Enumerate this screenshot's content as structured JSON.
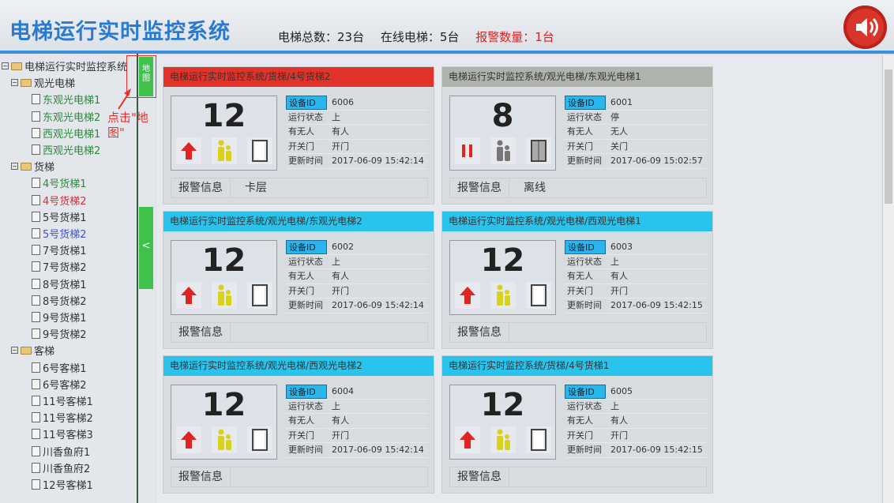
{
  "header": {
    "title": "电梯运行实时监控系统",
    "total": "电梯总数：23台",
    "online": "在线电梯：5台",
    "alarm": "报警数量：1台",
    "speaker_icon": "speaker-icon"
  },
  "sidebar": {
    "root": "电梯运行实时监控系统",
    "groups": [
      {
        "label": "观光电梯",
        "items": [
          {
            "label": "东观光电梯1",
            "color": "#2a8a3a"
          },
          {
            "label": "东观光电梯2",
            "color": "#2a8a3a"
          },
          {
            "label": "西观光电梯1",
            "color": "#2a8a3a"
          },
          {
            "label": "西观光电梯2",
            "color": "#2a8a3a"
          }
        ]
      },
      {
        "label": "货梯",
        "items": [
          {
            "label": "4号货梯1",
            "color": "#2a8a3a"
          },
          {
            "label": "4号货梯2",
            "color": "#d0303a"
          },
          {
            "label": "5号货梯1",
            "color": "#333333"
          },
          {
            "label": "5号货梯2",
            "color": "#4050d0"
          },
          {
            "label": "7号货梯1",
            "color": "#333333"
          },
          {
            "label": "7号货梯2",
            "color": "#333333"
          },
          {
            "label": "8号货梯1",
            "color": "#333333"
          },
          {
            "label": "8号货梯2",
            "color": "#333333"
          },
          {
            "label": "9号货梯1",
            "color": "#333333"
          },
          {
            "label": "9号货梯2",
            "color": "#333333"
          }
        ]
      },
      {
        "label": "客梯",
        "items": [
          {
            "label": "6号客梯1",
            "color": "#333333"
          },
          {
            "label": "6号客梯2",
            "color": "#333333"
          },
          {
            "label": "11号客梯1",
            "color": "#333333"
          },
          {
            "label": "11号客梯2",
            "color": "#333333"
          },
          {
            "label": "11号客梯3",
            "color": "#333333"
          },
          {
            "label": "川香鱼府1",
            "color": "#333333"
          },
          {
            "label": "川香鱼府2",
            "color": "#333333"
          },
          {
            "label": "12号客梯1",
            "color": "#333333"
          }
        ]
      }
    ],
    "map_button": "地图",
    "collapse_button": "<",
    "annotation": "点击\"地图\""
  },
  "labels": {
    "id": "设备ID",
    "state": "运行状态",
    "people": "有无人",
    "door": "开关门",
    "time": "更新时间",
    "alarm": "报警信息"
  },
  "cards": [
    {
      "title": "电梯运行实时监控系统/货梯/4号货梯2",
      "status": "alarm",
      "floor": "12",
      "id": "6006",
      "state": "上",
      "people": "有人",
      "door": "开门",
      "time": "2017-06-09 15:42:14",
      "alarm": "卡层"
    },
    {
      "title": "电梯运行实时监控系统/观光电梯/东观光电梯1",
      "status": "offline",
      "floor": "8",
      "id": "6001",
      "state": "停",
      "people": "无人",
      "door": "关门",
      "time": "2017-06-09 15:02:57",
      "alarm": "离线"
    },
    {
      "title": "电梯运行实时监控系统/观光电梯/东观光电梯2",
      "status": "online",
      "floor": "12",
      "id": "6002",
      "state": "上",
      "people": "有人",
      "door": "开门",
      "time": "2017-06-09 15:42:14",
      "alarm": ""
    },
    {
      "title": "电梯运行实时监控系统/观光电梯/西观光电梯1",
      "status": "online",
      "floor": "12",
      "id": "6003",
      "state": "上",
      "people": "有人",
      "door": "开门",
      "time": "2017-06-09 15:42:15",
      "alarm": ""
    },
    {
      "title": "电梯运行实时监控系统/观光电梯/西观光电梯2",
      "status": "online",
      "floor": "12",
      "id": "6004",
      "state": "上",
      "people": "有人",
      "door": "开门",
      "time": "2017-06-09 15:42:14",
      "alarm": ""
    },
    {
      "title": "电梯运行实时监控系统/货梯/4号货梯1",
      "status": "online",
      "floor": "12",
      "id": "6005",
      "state": "上",
      "people": "有人",
      "door": "开门",
      "time": "2017-06-09 15:42:15",
      "alarm": ""
    }
  ]
}
